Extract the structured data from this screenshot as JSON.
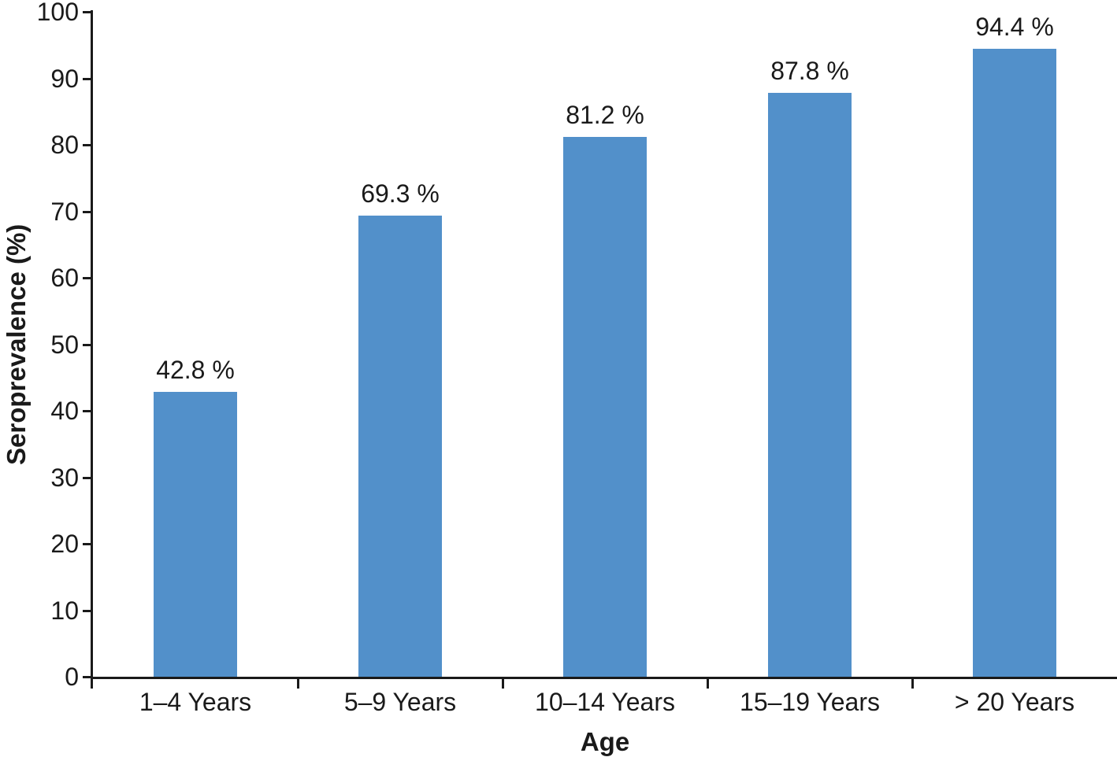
{
  "chart_data": {
    "type": "bar",
    "title": "",
    "xlabel": "Age",
    "ylabel": "Seroprevalence (%)",
    "categories": [
      "1–4 Years",
      "5–9 Years",
      "10–14 Years",
      "15–19 Years",
      "> 20 Years"
    ],
    "values": [
      42.8,
      69.3,
      81.2,
      87.8,
      94.4
    ],
    "value_labels": [
      "42.8 %",
      "69.3 %",
      "81.2 %",
      "87.8 %",
      "94.4 %"
    ],
    "ylim": [
      0,
      100
    ],
    "yticks": [
      0,
      10,
      20,
      30,
      40,
      50,
      60,
      70,
      80,
      90,
      100
    ],
    "grid": false,
    "legend": "none",
    "bar_color": "#5290CA",
    "axis_color": "#1A1A1A",
    "background": "#FFFFFF"
  }
}
